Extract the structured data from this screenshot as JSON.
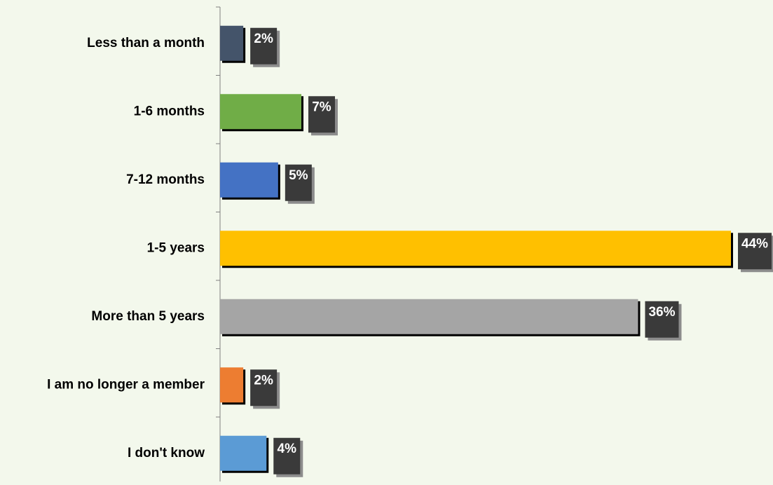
{
  "chart_data": {
    "type": "hbar",
    "categories": [
      "Less than a month",
      "1-6 months",
      "7-12 months",
      "1-5 years",
      "More than 5 years",
      "I am no longer a member",
      "I don't know"
    ],
    "values": [
      2,
      7,
      5,
      44,
      36,
      2,
      4
    ],
    "value_labels": [
      "2%",
      "7%",
      "5%",
      "44%",
      "36%",
      "2%",
      "4%"
    ],
    "colors": [
      "#44546a",
      "#70ad47",
      "#4472c4",
      "#ffc000",
      "#a5a5a5",
      "#ed7d31",
      "#5b9bd5"
    ]
  }
}
